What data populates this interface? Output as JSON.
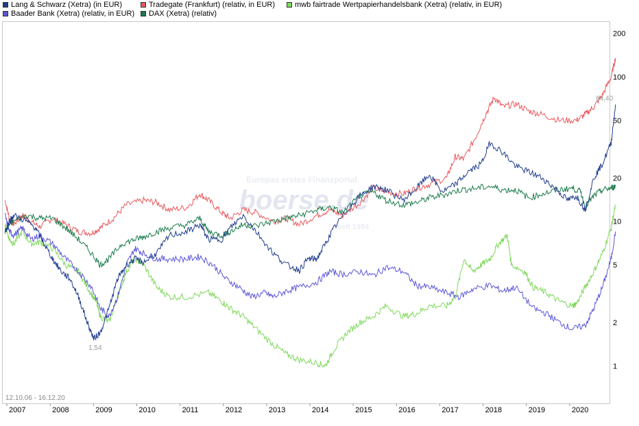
{
  "legend": [
    {
      "label": "Lang & Schwarz (Xetra) (in EUR)",
      "color": "#1f3c8c"
    },
    {
      "label": "Tradegate (Frankfurt) (relativ, in EUR)",
      "color": "#e8585c"
    },
    {
      "label": "mwb fairtrade Wertpapierhandelsbank (Xetra) (relativ, in EUR)",
      "color": "#7ed85a"
    },
    {
      "label": "Baader Bank (Xetra) (relativ, in EUR)",
      "color": "#5a56d6"
    },
    {
      "label": "DAX (Xetra) (relativ)",
      "color": "#1a7a4a"
    }
  ],
  "watermark": {
    "line1": "Europas erstes Finanzportal",
    "brand": "boerse.de",
    "line2": "seit 1994"
  },
  "date_range": "12.10.06 - 16.12.20",
  "annotations": {
    "min_label": "1,54",
    "max_label": "64,40"
  },
  "chart_data": {
    "type": "line",
    "title": "",
    "yscale": "log",
    "ylim": [
      0.55,
      240
    ],
    "xlim": [
      2007.0,
      2021.0
    ],
    "y_ticks": [
      {
        "value": 200,
        "label": "200"
      },
      {
        "value": 100,
        "label": "100"
      },
      {
        "value": 50,
        "label": "50"
      },
      {
        "value": 20,
        "label": "20"
      },
      {
        "value": 10,
        "label": "10"
      },
      {
        "value": 5,
        "label": "5"
      },
      {
        "value": 2,
        "label": "2"
      },
      {
        "value": 1,
        "label": "1"
      }
    ],
    "x_ticks": [
      {
        "value": 2007,
        "label": "2007"
      },
      {
        "value": 2008,
        "label": "2008"
      },
      {
        "value": 2009,
        "label": "2009"
      },
      {
        "value": 2010,
        "label": "2010"
      },
      {
        "value": 2011,
        "label": "2011"
      },
      {
        "value": 2012,
        "label": "2012"
      },
      {
        "value": 2013,
        "label": "2013"
      },
      {
        "value": 2014,
        "label": "2014"
      },
      {
        "value": 2015,
        "label": "2015"
      },
      {
        "value": 2016,
        "label": "2016"
      },
      {
        "value": 2017,
        "label": "2017"
      },
      {
        "value": 2018,
        "label": "2018"
      },
      {
        "value": 2019,
        "label": "2019"
      },
      {
        "value": 2020,
        "label": "2020"
      }
    ],
    "series": [
      {
        "name": "Tradegate (Frankfurt) (relativ, in EUR)",
        "color": "#e8585c",
        "points": [
          [
            2006.8,
            14
          ],
          [
            2006.9,
            10.5
          ],
          [
            2007.0,
            9.5
          ],
          [
            2007.2,
            11
          ],
          [
            2007.4,
            10
          ],
          [
            2007.6,
            9.2
          ],
          [
            2007.9,
            10.5
          ],
          [
            2008.2,
            9.5
          ],
          [
            2008.5,
            8.5
          ],
          [
            2008.8,
            8.3
          ],
          [
            2009.0,
            9
          ],
          [
            2009.3,
            10.5
          ],
          [
            2009.6,
            13
          ],
          [
            2010.0,
            14
          ],
          [
            2010.3,
            13.5
          ],
          [
            2010.6,
            12
          ],
          [
            2011.0,
            12.5
          ],
          [
            2011.3,
            15.5
          ],
          [
            2011.5,
            14
          ],
          [
            2011.8,
            11.5
          ],
          [
            2012.0,
            10.5
          ],
          [
            2012.3,
            12
          ],
          [
            2012.6,
            11.5
          ],
          [
            2013.0,
            10
          ],
          [
            2013.3,
            10.5
          ],
          [
            2013.6,
            9.5
          ],
          [
            2014.0,
            11
          ],
          [
            2014.3,
            12
          ],
          [
            2014.6,
            11
          ],
          [
            2015.0,
            13.5
          ],
          [
            2015.3,
            17
          ],
          [
            2015.6,
            16
          ],
          [
            2016.0,
            15.5
          ],
          [
            2016.3,
            17
          ],
          [
            2016.6,
            18
          ],
          [
            2017.0,
            20
          ],
          [
            2017.2,
            28
          ],
          [
            2017.4,
            27
          ],
          [
            2017.7,
            40
          ],
          [
            2017.9,
            55
          ],
          [
            2018.1,
            72
          ],
          [
            2018.3,
            62
          ],
          [
            2018.6,
            65
          ],
          [
            2018.9,
            58
          ],
          [
            2019.2,
            55
          ],
          [
            2019.6,
            50
          ],
          [
            2020.0,
            50
          ],
          [
            2020.2,
            55
          ],
          [
            2020.4,
            62
          ],
          [
            2020.6,
            75
          ],
          [
            2020.8,
            100
          ],
          [
            2020.9,
            135
          ]
        ]
      },
      {
        "name": "mwb fairtrade Wertpapierhandelsbank (Xetra) (relativ, in EUR)",
        "color": "#7ed85a",
        "points": [
          [
            2006.8,
            9.5
          ],
          [
            2006.9,
            7.5
          ],
          [
            2007.0,
            7
          ],
          [
            2007.2,
            8.5
          ],
          [
            2007.4,
            7
          ],
          [
            2007.6,
            7.2
          ],
          [
            2007.9,
            6.5
          ],
          [
            2008.2,
            5
          ],
          [
            2008.5,
            4.5
          ],
          [
            2008.7,
            3.5
          ],
          [
            2008.9,
            2.8
          ],
          [
            2009.0,
            2.2
          ],
          [
            2009.2,
            2
          ],
          [
            2009.4,
            3
          ],
          [
            2009.6,
            4.5
          ],
          [
            2009.8,
            5.5
          ],
          [
            2010.0,
            5
          ],
          [
            2010.3,
            3.5
          ],
          [
            2010.6,
            3
          ],
          [
            2011.0,
            3
          ],
          [
            2011.5,
            3.2
          ],
          [
            2011.8,
            2.8
          ],
          [
            2012.0,
            2.5
          ],
          [
            2012.3,
            2.2
          ],
          [
            2012.6,
            1.8
          ],
          [
            2013.0,
            1.4
          ],
          [
            2013.3,
            1.2
          ],
          [
            2013.6,
            1.1
          ],
          [
            2014.0,
            1.05
          ],
          [
            2014.2,
            1.0
          ],
          [
            2014.4,
            1.3
          ],
          [
            2014.7,
            1.7
          ],
          [
            2015.0,
            2
          ],
          [
            2015.3,
            2.2
          ],
          [
            2015.6,
            2.6
          ],
          [
            2016.0,
            2.2
          ],
          [
            2016.3,
            2.3
          ],
          [
            2016.6,
            2.6
          ],
          [
            2017.0,
            2.6
          ],
          [
            2017.2,
            3
          ],
          [
            2017.4,
            5.5
          ],
          [
            2017.6,
            4.5
          ],
          [
            2017.8,
            5
          ],
          [
            2018.0,
            5.5
          ],
          [
            2018.2,
            7
          ],
          [
            2018.4,
            8
          ],
          [
            2018.5,
            5
          ],
          [
            2018.8,
            4.5
          ],
          [
            2019.0,
            3.5
          ],
          [
            2019.3,
            3.2
          ],
          [
            2019.6,
            2.8
          ],
          [
            2019.9,
            2.6
          ],
          [
            2020.0,
            2.7
          ],
          [
            2020.2,
            3.5
          ],
          [
            2020.4,
            4.5
          ],
          [
            2020.6,
            6
          ],
          [
            2020.8,
            9
          ],
          [
            2020.9,
            13
          ]
        ]
      },
      {
        "name": "Baader Bank (Xetra) (relativ, in EUR)",
        "color": "#5a56d6",
        "points": [
          [
            2006.8,
            11
          ],
          [
            2006.9,
            8.5
          ],
          [
            2007.0,
            8
          ],
          [
            2007.2,
            9
          ],
          [
            2007.4,
            7.5
          ],
          [
            2007.6,
            8
          ],
          [
            2007.9,
            7
          ],
          [
            2008.2,
            5.5
          ],
          [
            2008.5,
            4.5
          ],
          [
            2008.8,
            3.5
          ],
          [
            2009.0,
            2.5
          ],
          [
            2009.2,
            2.2
          ],
          [
            2009.4,
            3
          ],
          [
            2009.6,
            5
          ],
          [
            2009.8,
            6.5
          ],
          [
            2010.0,
            6
          ],
          [
            2010.3,
            5.5
          ],
          [
            2010.6,
            5.5
          ],
          [
            2011.0,
            5.5
          ],
          [
            2011.3,
            5.7
          ],
          [
            2011.6,
            5
          ],
          [
            2011.9,
            4
          ],
          [
            2012.2,
            3.5
          ],
          [
            2012.5,
            3
          ],
          [
            2012.8,
            3.2
          ],
          [
            2013.0,
            3
          ],
          [
            2013.3,
            3.3
          ],
          [
            2013.6,
            3.5
          ],
          [
            2014.0,
            3.8
          ],
          [
            2014.3,
            4.5
          ],
          [
            2014.6,
            4.3
          ],
          [
            2015.0,
            4.5
          ],
          [
            2015.3,
            4.2
          ],
          [
            2015.6,
            4.8
          ],
          [
            2016.0,
            4.5
          ],
          [
            2016.3,
            3.6
          ],
          [
            2016.6,
            3.5
          ],
          [
            2017.0,
            3.2
          ],
          [
            2017.3,
            3
          ],
          [
            2017.6,
            3.4
          ],
          [
            2018.0,
            3.6
          ],
          [
            2018.3,
            3.3
          ],
          [
            2018.6,
            3.5
          ],
          [
            2019.0,
            2.5
          ],
          [
            2019.3,
            2.3
          ],
          [
            2019.6,
            2
          ],
          [
            2019.9,
            1.8
          ],
          [
            2020.2,
            1.9
          ],
          [
            2020.4,
            2.5
          ],
          [
            2020.6,
            3.5
          ],
          [
            2020.8,
            5.5
          ],
          [
            2020.9,
            8.5
          ]
        ]
      },
      {
        "name": "DAX (Xetra) (relativ)",
        "color": "#1a7a4a",
        "points": [
          [
            2006.8,
            8.5
          ],
          [
            2006.9,
            9.5
          ],
          [
            2007.0,
            10
          ],
          [
            2007.3,
            11
          ],
          [
            2007.6,
            10.5
          ],
          [
            2007.9,
            10.5
          ],
          [
            2008.2,
            9
          ],
          [
            2008.5,
            7.5
          ],
          [
            2008.8,
            6
          ],
          [
            2009.0,
            5
          ],
          [
            2009.2,
            5.5
          ],
          [
            2009.5,
            7
          ],
          [
            2009.8,
            7.5
          ],
          [
            2010.0,
            7.8
          ],
          [
            2010.3,
            8.5
          ],
          [
            2010.6,
            9
          ],
          [
            2011.0,
            9.5
          ],
          [
            2011.3,
            10.5
          ],
          [
            2011.5,
            8.5
          ],
          [
            2011.8,
            8
          ],
          [
            2012.0,
            8.5
          ],
          [
            2012.3,
            9.5
          ],
          [
            2012.6,
            9.3
          ],
          [
            2013.0,
            10
          ],
          [
            2013.3,
            10.5
          ],
          [
            2013.6,
            11
          ],
          [
            2014.0,
            12
          ],
          [
            2014.3,
            12.5
          ],
          [
            2014.6,
            11.5
          ],
          [
            2015.0,
            15
          ],
          [
            2015.3,
            16
          ],
          [
            2015.6,
            14
          ],
          [
            2016.0,
            13
          ],
          [
            2016.3,
            13.5
          ],
          [
            2016.6,
            14.5
          ],
          [
            2017.0,
            15.5
          ],
          [
            2017.3,
            16.5
          ],
          [
            2017.6,
            16.8
          ],
          [
            2018.0,
            17.5
          ],
          [
            2018.3,
            16.5
          ],
          [
            2018.6,
            16.5
          ],
          [
            2018.9,
            14.5
          ],
          [
            2019.2,
            15.5
          ],
          [
            2019.6,
            16.5
          ],
          [
            2019.9,
            17
          ],
          [
            2020.1,
            16
          ],
          [
            2020.2,
            12.5
          ],
          [
            2020.4,
            15
          ],
          [
            2020.6,
            16.5
          ],
          [
            2020.8,
            17
          ],
          [
            2020.9,
            17.5
          ]
        ]
      },
      {
        "name": "Lang & Schwarz (Xetra) (in EUR)",
        "color": "#1f3c8c",
        "points": [
          [
            2006.8,
            8.5
          ],
          [
            2006.9,
            10
          ],
          [
            2007.0,
            11
          ],
          [
            2007.3,
            10
          ],
          [
            2007.5,
            9
          ],
          [
            2007.7,
            7
          ],
          [
            2007.9,
            5.5
          ],
          [
            2008.1,
            4.5
          ],
          [
            2008.3,
            4
          ],
          [
            2008.5,
            3
          ],
          [
            2008.7,
            2
          ],
          [
            2008.85,
            1.54
          ],
          [
            2009.0,
            1.7
          ],
          [
            2009.2,
            2.5
          ],
          [
            2009.4,
            4
          ],
          [
            2009.6,
            5
          ],
          [
            2009.8,
            5.5
          ],
          [
            2010.0,
            5.2
          ],
          [
            2010.3,
            6
          ],
          [
            2010.6,
            8
          ],
          [
            2011.0,
            8.5
          ],
          [
            2011.3,
            9.5
          ],
          [
            2011.5,
            7.5
          ],
          [
            2011.8,
            7.5
          ],
          [
            2012.0,
            9
          ],
          [
            2012.3,
            11
          ],
          [
            2012.6,
            8.5
          ],
          [
            2013.0,
            6
          ],
          [
            2013.3,
            5
          ],
          [
            2013.6,
            4.6
          ],
          [
            2013.8,
            5.5
          ],
          [
            2014.0,
            5.5
          ],
          [
            2014.2,
            7
          ],
          [
            2014.4,
            9
          ],
          [
            2014.7,
            12
          ],
          [
            2015.0,
            15
          ],
          [
            2015.3,
            17.5
          ],
          [
            2015.6,
            16.5
          ],
          [
            2016.0,
            14
          ],
          [
            2016.3,
            17
          ],
          [
            2016.6,
            21
          ],
          [
            2016.9,
            16
          ],
          [
            2017.2,
            18
          ],
          [
            2017.5,
            22
          ],
          [
            2017.8,
            25
          ],
          [
            2018.0,
            35
          ],
          [
            2018.3,
            30
          ],
          [
            2018.6,
            24
          ],
          [
            2018.9,
            22
          ],
          [
            2019.2,
            20
          ],
          [
            2019.5,
            17
          ],
          [
            2019.8,
            14
          ],
          [
            2020.0,
            15
          ],
          [
            2020.2,
            12
          ],
          [
            2020.4,
            20
          ],
          [
            2020.6,
            25
          ],
          [
            2020.8,
            35
          ],
          [
            2020.9,
            64.4
          ]
        ]
      }
    ]
  }
}
